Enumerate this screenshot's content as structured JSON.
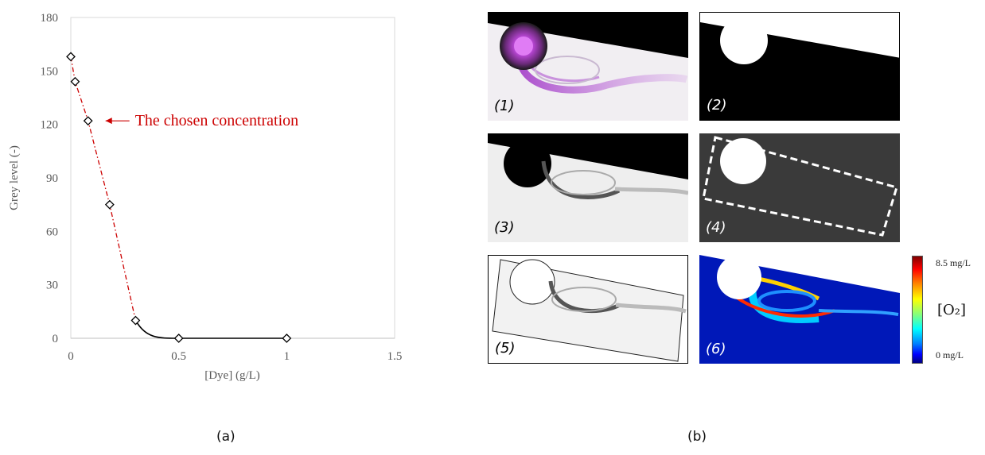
{
  "chart_data": {
    "type": "scatter",
    "xlabel": "[Dye] (g/L)",
    "ylabel": "Grey level (-)",
    "xlim": [
      0,
      1.5
    ],
    "ylim": [
      0,
      180
    ],
    "x_ticks": [
      "0",
      "0.5",
      "1",
      "1.5"
    ],
    "y_ticks": [
      "0",
      "30",
      "60",
      "90",
      "120",
      "150",
      "180"
    ],
    "grid": false,
    "points": [
      {
        "x": 0,
        "y": 158
      },
      {
        "x": 0.02,
        "y": 144
      },
      {
        "x": 0.08,
        "y": 122
      },
      {
        "x": 0.18,
        "y": 75
      },
      {
        "x": 0.3,
        "y": 10
      },
      {
        "x": 0.5,
        "y": 0
      },
      {
        "x": 1,
        "y": 0
      }
    ],
    "annotation": "The chosen concentration",
    "annotated_point_index": 2
  },
  "captions": {
    "a": "(a)",
    "b": "(b)"
  },
  "panels": [
    {
      "label": "(1)"
    },
    {
      "label": "(2)"
    },
    {
      "label": "(3)"
    },
    {
      "label": "(4)"
    },
    {
      "label": "(5)"
    },
    {
      "label": "(6)"
    }
  ],
  "colorbar": {
    "max_label": "8.5 mg/L",
    "min_label": "0 mg/L",
    "symbol": "[O₂]"
  },
  "colors": {
    "accent": "#cc0000",
    "dye": "#b44fd1"
  }
}
